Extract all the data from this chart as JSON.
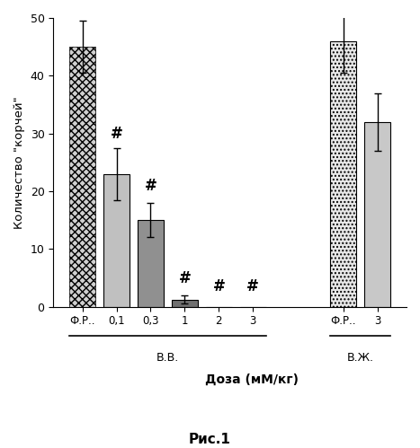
{
  "bars": [
    {
      "label": "Ф.Р..",
      "value": 45,
      "yerr": 4.5,
      "hatch": "///",
      "facecolor": "#d8d8d8",
      "edgecolor": "#000000",
      "hash_mark": false,
      "group": "vv"
    },
    {
      "label": "0,1",
      "value": 23,
      "yerr": 4.5,
      "hatch": "",
      "facecolor": "#c8c8c8",
      "edgecolor": "#000000",
      "hash_mark": true,
      "group": "vv"
    },
    {
      "label": "0,3",
      "value": 15,
      "yerr": 3.0,
      "hatch": "",
      "facecolor": "#999999",
      "edgecolor": "#000000",
      "hash_mark": true,
      "group": "vv"
    },
    {
      "label": "1",
      "value": 1.2,
      "yerr": 0.7,
      "hatch": "",
      "facecolor": "#777777",
      "edgecolor": "#000000",
      "hash_mark": true,
      "group": "vv"
    },
    {
      "label": "2",
      "value": 0.0,
      "yerr": 0.0,
      "hatch": "",
      "facecolor": "#aaaaaa",
      "edgecolor": "#000000",
      "hash_mark": true,
      "group": "vv"
    },
    {
      "label": "3",
      "value": 0.0,
      "yerr": 0.0,
      "hatch": "",
      "facecolor": "#aaaaaa",
      "edgecolor": "#000000",
      "hash_mark": true,
      "group": "vv"
    },
    {
      "label": "Ф.Р..",
      "value": 46,
      "yerr": 5.5,
      "hatch": "..",
      "facecolor": "#e8e8e8",
      "edgecolor": "#000000",
      "hash_mark": false,
      "group": "vzh"
    },
    {
      "label": "3",
      "value": 32,
      "yerr": 5.0,
      "hatch": "",
      "facecolor": "#c8c8c8",
      "edgecolor": "#000000",
      "hash_mark": false,
      "group": "vzh"
    }
  ],
  "ylabel": "Количество \"корчей\"",
  "xlabel": "Доза (мМ/кг)",
  "ylim": [
    0,
    50
  ],
  "yticks": [
    0,
    10,
    20,
    30,
    40,
    50
  ],
  "group_vv_label": "В.В.",
  "group_vzh_label": "В.Ж.",
  "fig_label": "Рис.1"
}
